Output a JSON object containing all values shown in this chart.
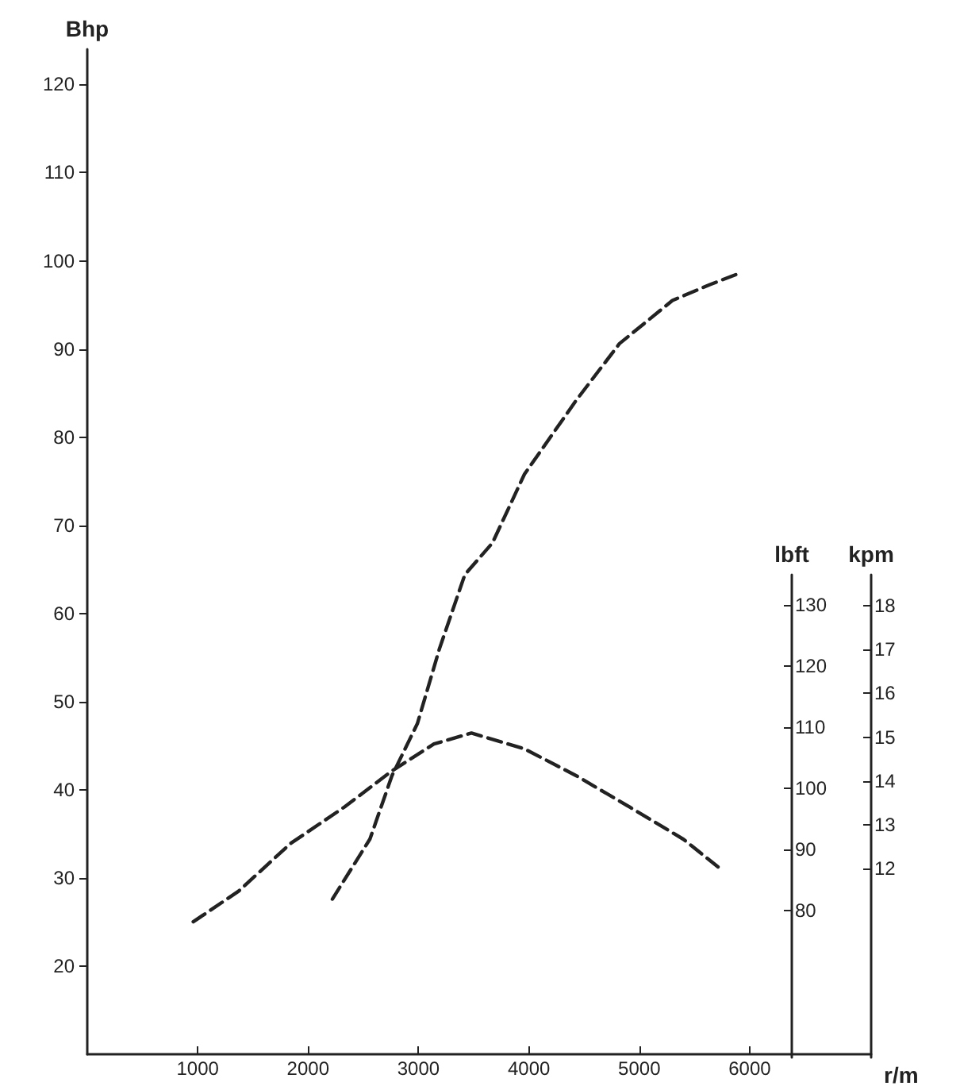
{
  "chart_data": {
    "type": "line",
    "xlabel": "r/m",
    "ylabel": "Bhp",
    "y2label": "lbft",
    "y3label": "kpm",
    "xlim": [
      0,
      7100
    ],
    "xticks": [
      1000,
      2000,
      3000,
      4000,
      5000,
      6000
    ],
    "ylim": [
      10,
      124
    ],
    "yticks": [
      20,
      30,
      40,
      50,
      60,
      70,
      80,
      90,
      100,
      110,
      120
    ],
    "y2lim": [
      56,
      135
    ],
    "y2ticks": [
      80,
      90,
      100,
      110,
      120,
      130
    ],
    "y3lim": [
      7.7,
      18.7
    ],
    "y3ticks": [
      12,
      13,
      14,
      15,
      16,
      17,
      18
    ],
    "grid": false,
    "marker": "none",
    "line_style": "dashed",
    "series": [
      {
        "color": "#222222",
        "x": [
          2220,
          2560,
          2760,
          2990,
          3190,
          3420,
          3670,
          3960,
          4430,
          4820,
          5300,
          5640,
          5930
        ],
        "values": [
          27.6,
          34.4,
          41.6,
          47.5,
          56,
          64.4,
          68,
          75.8,
          84.2,
          90.6,
          95.5,
          97.3,
          98.7
        ]
      },
      {
        "color": "#222222",
        "axis": "y2",
        "x": [
          960,
          1370,
          1840,
          2330,
          2760,
          3140,
          3480,
          3960,
          4430,
          4920,
          5400,
          5760
        ],
        "values": [
          78.2,
          83.2,
          91,
          97,
          102.9,
          107.3,
          109.1,
          106.5,
          102.1,
          96.9,
          91.7,
          86.5
        ]
      }
    ]
  }
}
